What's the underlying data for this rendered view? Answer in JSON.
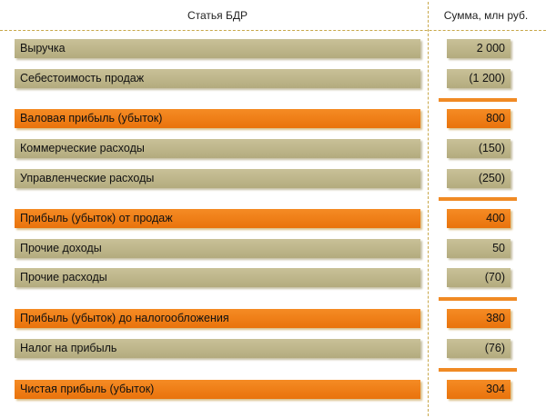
{
  "header": {
    "left_title": "Статья БДР",
    "right_title": "Сумма, млн руб."
  },
  "rows": [
    {
      "label": "Выручка",
      "value": "2 000",
      "kind": "normal"
    },
    {
      "label": "Себестоимость продаж",
      "value": "(1 200)",
      "kind": "normal"
    },
    {
      "label": "Валовая прибыль (убыток)",
      "value": "800",
      "kind": "total"
    },
    {
      "label": "Коммерческие расходы",
      "value": "(150)",
      "kind": "normal"
    },
    {
      "label": "Управленческие расходы",
      "value": "(250)",
      "kind": "normal"
    },
    {
      "label": "Прибыль (убыток) от продаж",
      "value": "400",
      "kind": "total"
    },
    {
      "label": "Прочие доходы",
      "value": "50",
      "kind": "normal"
    },
    {
      "label": "Прочие расходы",
      "value": "(70)",
      "kind": "normal"
    },
    {
      "label": "Прибыль (убыток) до налогообложения",
      "value": "380",
      "kind": "total"
    },
    {
      "label": "Налог на прибыль",
      "value": "(76)",
      "kind": "normal"
    },
    {
      "label": "Чистая прибыль (убыток)",
      "value": "304",
      "kind": "total"
    }
  ],
  "colors": {
    "normal_bar": "#bdb58a",
    "total_bar": "#f07d16",
    "separator": "#f08a24",
    "dashed_line": "#c8a84a"
  }
}
